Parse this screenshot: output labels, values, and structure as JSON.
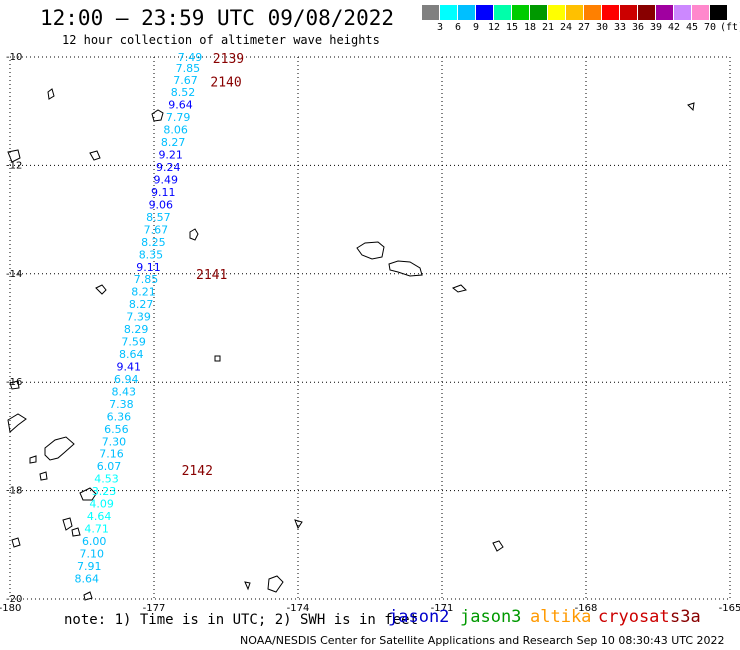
{
  "title": "12:00 — 23:59 UTC 09/08/2022",
  "subtitle": "12 hour collection of altimeter wave heights",
  "legend": {
    "colors": [
      "#808080",
      "#00ffff",
      "#00bfff",
      "#0000ff",
      "#00ffaa",
      "#00cc00",
      "#009900",
      "#ffff00",
      "#ffc000",
      "#ff8000",
      "#ff0000",
      "#cc0000",
      "#880000",
      "#a000a0",
      "#cc88ff",
      "#ff88cc",
      "#000000"
    ],
    "labels": [
      "3",
      "6",
      "9",
      "12",
      "15",
      "18",
      "21",
      "24",
      "27",
      "30",
      "33",
      "36",
      "39",
      "42",
      "45",
      "70"
    ],
    "unit": "(ft)"
  },
  "axes": {
    "x_ticks": [
      "-180",
      "-177",
      "-174",
      "-171",
      "-168",
      "-165"
    ],
    "y_ticks": [
      "-10",
      "-12",
      "-14",
      "-16",
      "-18",
      "-20"
    ]
  },
  "track": {
    "times": [
      {
        "label": "2139",
        "lat": -10.02,
        "lon": -176.15
      },
      {
        "label": "2140",
        "lat": -10.45,
        "lon": -176.2
      },
      {
        "label": "2141",
        "lat": -14.0,
        "lon": -176.5
      },
      {
        "label": "2142",
        "lat": -17.62,
        "lon": -176.8
      }
    ],
    "points": [
      {
        "v": "7.49",
        "lat": -10.0,
        "c": "#00bfff"
      },
      {
        "v": "7.85",
        "lat": -10.2,
        "c": "#00bfff"
      },
      {
        "v": "7.67",
        "lat": -10.42,
        "c": "#00bfff"
      },
      {
        "v": "8.52",
        "lat": -10.65,
        "c": "#00bfff"
      },
      {
        "v": "9.64",
        "lat": -10.88,
        "c": "#0000ff"
      },
      {
        "v": "7.79",
        "lat": -11.11,
        "c": "#00bfff"
      },
      {
        "v": "8.06",
        "lat": -11.34,
        "c": "#00bfff"
      },
      {
        "v": "8.27",
        "lat": -11.57,
        "c": "#00bfff"
      },
      {
        "v": "9.21",
        "lat": -11.8,
        "c": "#0000ff"
      },
      {
        "v": "9.24",
        "lat": -12.03,
        "c": "#0000ff"
      },
      {
        "v": "9.49",
        "lat": -12.26,
        "c": "#0000ff"
      },
      {
        "v": "9.11",
        "lat": -12.49,
        "c": "#0000ff"
      },
      {
        "v": "9.06",
        "lat": -12.72,
        "c": "#0000ff"
      },
      {
        "v": "8.57",
        "lat": -12.95,
        "c": "#00bfff"
      },
      {
        "v": "7.67",
        "lat": -13.18,
        "c": "#00bfff"
      },
      {
        "v": "8.25",
        "lat": -13.41,
        "c": "#00bfff"
      },
      {
        "v": "8.35",
        "lat": -13.64,
        "c": "#00bfff"
      },
      {
        "v": "9.11",
        "lat": -13.87,
        "c": "#0000ff"
      },
      {
        "v": "7.85",
        "lat": -14.1,
        "c": "#00bfff"
      },
      {
        "v": "8.21",
        "lat": -14.33,
        "c": "#00bfff"
      },
      {
        "v": "8.27",
        "lat": -14.56,
        "c": "#00bfff"
      },
      {
        "v": "7.39",
        "lat": -14.79,
        "c": "#00bfff"
      },
      {
        "v": "8.29",
        "lat": -15.02,
        "c": "#00bfff"
      },
      {
        "v": "7.59",
        "lat": -15.25,
        "c": "#00bfff"
      },
      {
        "v": "8.64",
        "lat": -15.48,
        "c": "#00bfff"
      },
      {
        "v": "9.41",
        "lat": -15.71,
        "c": "#0000ff"
      },
      {
        "v": "6.94",
        "lat": -15.94,
        "c": "#00bfff"
      },
      {
        "v": "8.43",
        "lat": -16.17,
        "c": "#00bfff"
      },
      {
        "v": "7.38",
        "lat": -16.4,
        "c": "#00bfff"
      },
      {
        "v": "6.36",
        "lat": -16.63,
        "c": "#00bfff"
      },
      {
        "v": "6.56",
        "lat": -16.86,
        "c": "#00bfff"
      },
      {
        "v": "7.30",
        "lat": -17.09,
        "c": "#00bfff"
      },
      {
        "v": "7.16",
        "lat": -17.32,
        "c": "#00bfff"
      },
      {
        "v": "6.07",
        "lat": -17.55,
        "c": "#00bfff"
      },
      {
        "v": "4.53",
        "lat": -17.78,
        "c": "#00ffff"
      },
      {
        "v": "3.23",
        "lat": -18.01,
        "c": "#00ffff"
      },
      {
        "v": "4.09",
        "lat": -18.24,
        "c": "#00ffff"
      },
      {
        "v": "4.64",
        "lat": -18.47,
        "c": "#00ffff"
      },
      {
        "v": "4.71",
        "lat": -18.7,
        "c": "#00ffff"
      },
      {
        "v": "6.00",
        "lat": -18.93,
        "c": "#00bfff"
      },
      {
        "v": "7.10",
        "lat": -19.16,
        "c": "#00bfff"
      },
      {
        "v": "7.91",
        "lat": -19.39,
        "c": "#00bfff"
      },
      {
        "v": "8.64",
        "lat": -19.62,
        "c": "#00bfff"
      }
    ]
  },
  "footer": {
    "note": "note: 1) Time is in UTC; 2) SWH is in feet",
    "satellites": [
      {
        "name": "jason2",
        "color": "#0000cc"
      },
      {
        "name": "jason3",
        "color": "#009900"
      },
      {
        "name": "altika",
        "color": "#ff9900"
      },
      {
        "name": "cryosat",
        "color": "#cc0000"
      },
      {
        "name": "s3a",
        "color": "#880000"
      }
    ],
    "credit": "NOAA/NESDIS Center for Satellite Applications and Research   Sep 10 08:30:43 UTC 2022"
  }
}
